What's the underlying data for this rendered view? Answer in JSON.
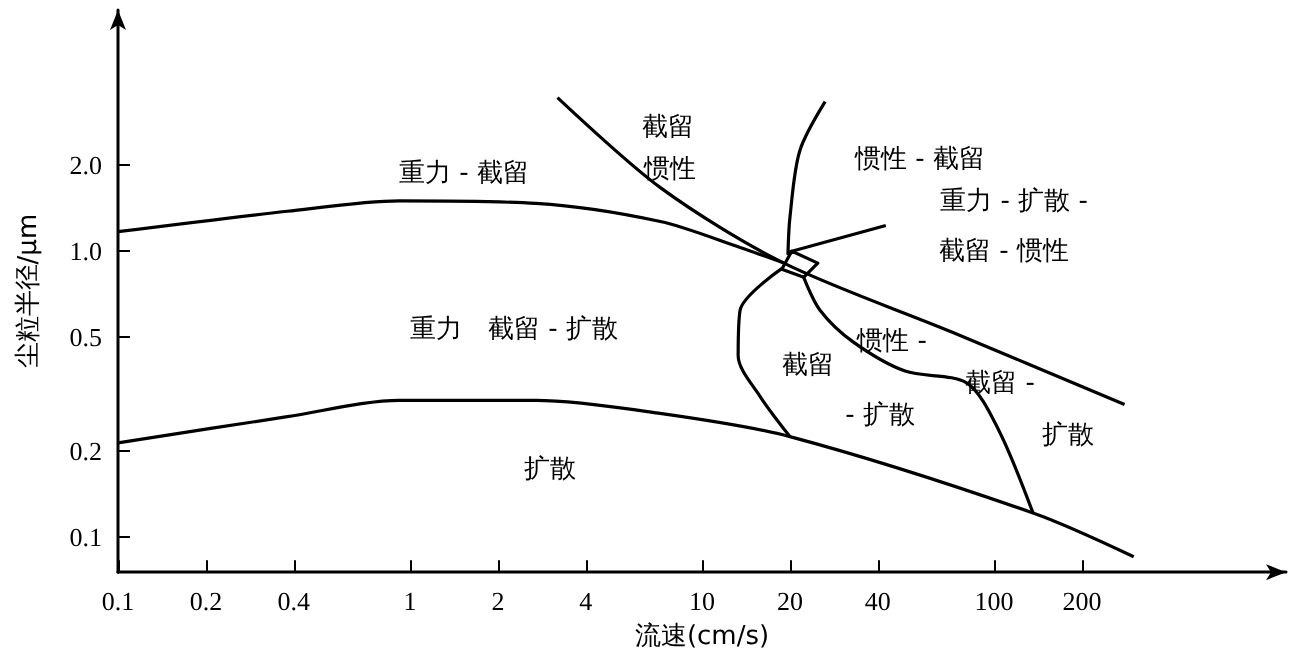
{
  "chart_data": {
    "type": "line",
    "xlabel": "流速(cm/s)",
    "ylabel": "尘粒半径/μm",
    "log": "xy",
    "marker": "none",
    "line_style": "solid",
    "xlim": [
      0.1,
      1000
    ],
    "ylim": [
      0.075,
      7
    ],
    "xticks": [
      0.1,
      0.2,
      0.4,
      1,
      2,
      4,
      10,
      20,
      40,
      100,
      200
    ],
    "yticks": [
      0.1,
      0.2,
      0.5,
      {
        "value": 1,
        "label": "1.0"
      },
      {
        "value": 2,
        "label": "2.0"
      }
    ],
    "series": [
      {
        "color": "#000000",
        "x": [
          0.1,
          0.38,
          0.92,
          2.7,
          7.2,
          13.5,
          19
        ],
        "values": [
          1.17,
          1.38,
          1.5,
          1.47,
          1.27,
          1.03,
          0.91
        ]
      },
      {
        "color": "#000000",
        "x": [
          3.2,
          7.2,
          19,
          72,
          280
        ],
        "values": [
          3.45,
          1.67,
          0.91,
          0.52,
          0.29
        ]
      },
      {
        "color": "#000000",
        "x": [
          26.4,
          21.6,
          20,
          19.7,
          20.3
        ],
        "values": [
          3.34,
          2.24,
          1.31,
          0.98,
          1.0
        ]
      },
      {
        "color": "#000000",
        "x": [
          20.3,
          42.6
        ],
        "values": [
          1.0,
          1.23
        ]
      },
      {
        "color": "#000000",
        "x": [
          18.8,
          13.5,
          13.3,
          15.8,
          20
        ],
        "values": [
          0.87,
          0.62,
          0.43,
          0.31,
          0.224
        ]
      },
      {
        "color": "#000000",
        "x": [
          22.3,
          25.4,
          33,
          49.6,
          80.8,
          104,
          136
        ],
        "values": [
          0.81,
          0.62,
          0.48,
          0.38,
          0.345,
          0.235,
          0.121
        ]
      },
      {
        "color": "#000000",
        "x": [
          0.1,
          0.38,
          0.92,
          2.7,
          7.2,
          20,
          136,
          301
        ],
        "values": [
          0.213,
          0.263,
          0.3,
          0.3,
          0.27,
          0.224,
          0.121,
          0.085
        ]
      }
    ],
    "annotations": [
      "重力 - 截留",
      "截留",
      "惯性",
      "惯性 - 截留",
      "重力 - 扩散 -",
      "截留 - 惯性",
      "重力　截留 - 扩散",
      "扩散",
      "截留",
      "- 扩散",
      "惯性 -",
      "截留 -",
      "扩散"
    ]
  }
}
